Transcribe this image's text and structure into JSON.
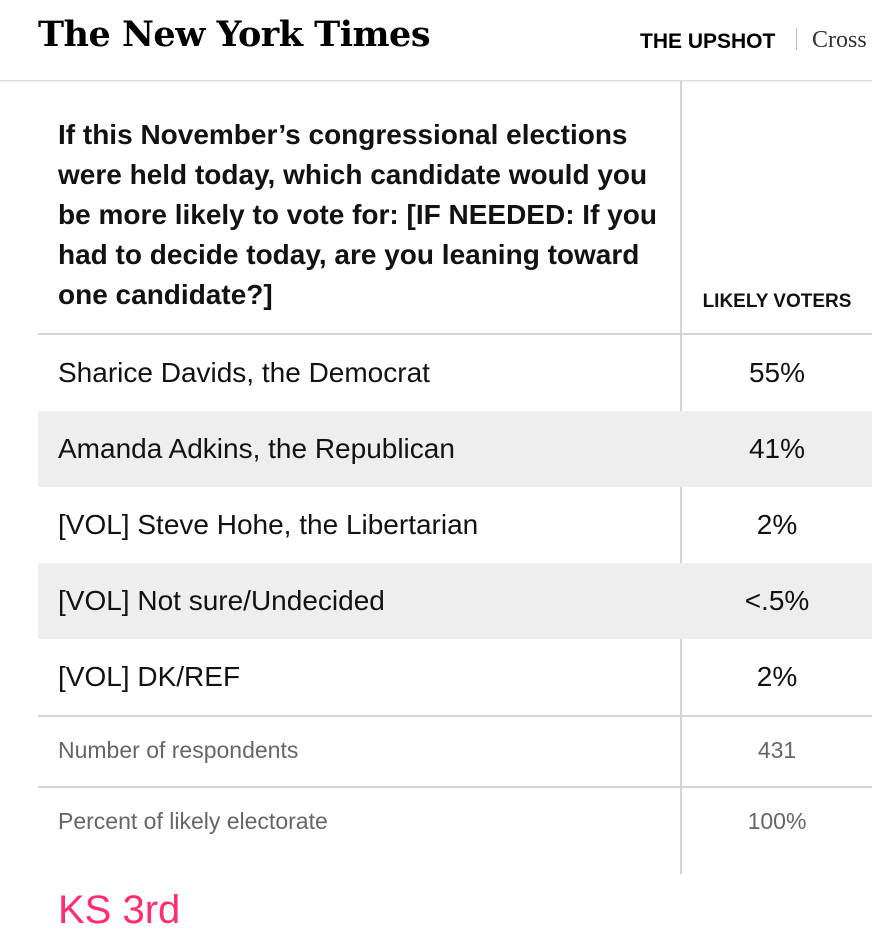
{
  "header": {
    "logo_text": "The New York Times",
    "section_label": "THE UPSHOT",
    "secondary_label": "Cross"
  },
  "table": {
    "question": "If this November’s congressional elections were held today, which candidate would you be more likely to vote for: [IF NEEDED: If you had to decide today, are you leaning toward one candidate?]",
    "column_header": "LIKELY VOTERS",
    "rows": [
      {
        "label": "Sharice Davids, the Democrat",
        "value": "55%"
      },
      {
        "label": "Amanda Adkins, the Republican",
        "value": "41%"
      },
      {
        "label": "[VOL] Steve Hohe, the Libertarian",
        "value": "2%"
      },
      {
        "label": "[VOL] Not sure/Undecided",
        "value": "<.5%"
      },
      {
        "label": "[VOL] DK/REF",
        "value": "2%"
      }
    ],
    "meta": [
      {
        "label": "Number of respondents",
        "value": "431"
      },
      {
        "label": "Percent of likely electorate",
        "value": "100%"
      }
    ]
  },
  "caption": "KS 3rd",
  "colors": {
    "caption": "#ff2d6e",
    "row_shade": "#eeeeee",
    "divider": "#d4d4d4"
  }
}
